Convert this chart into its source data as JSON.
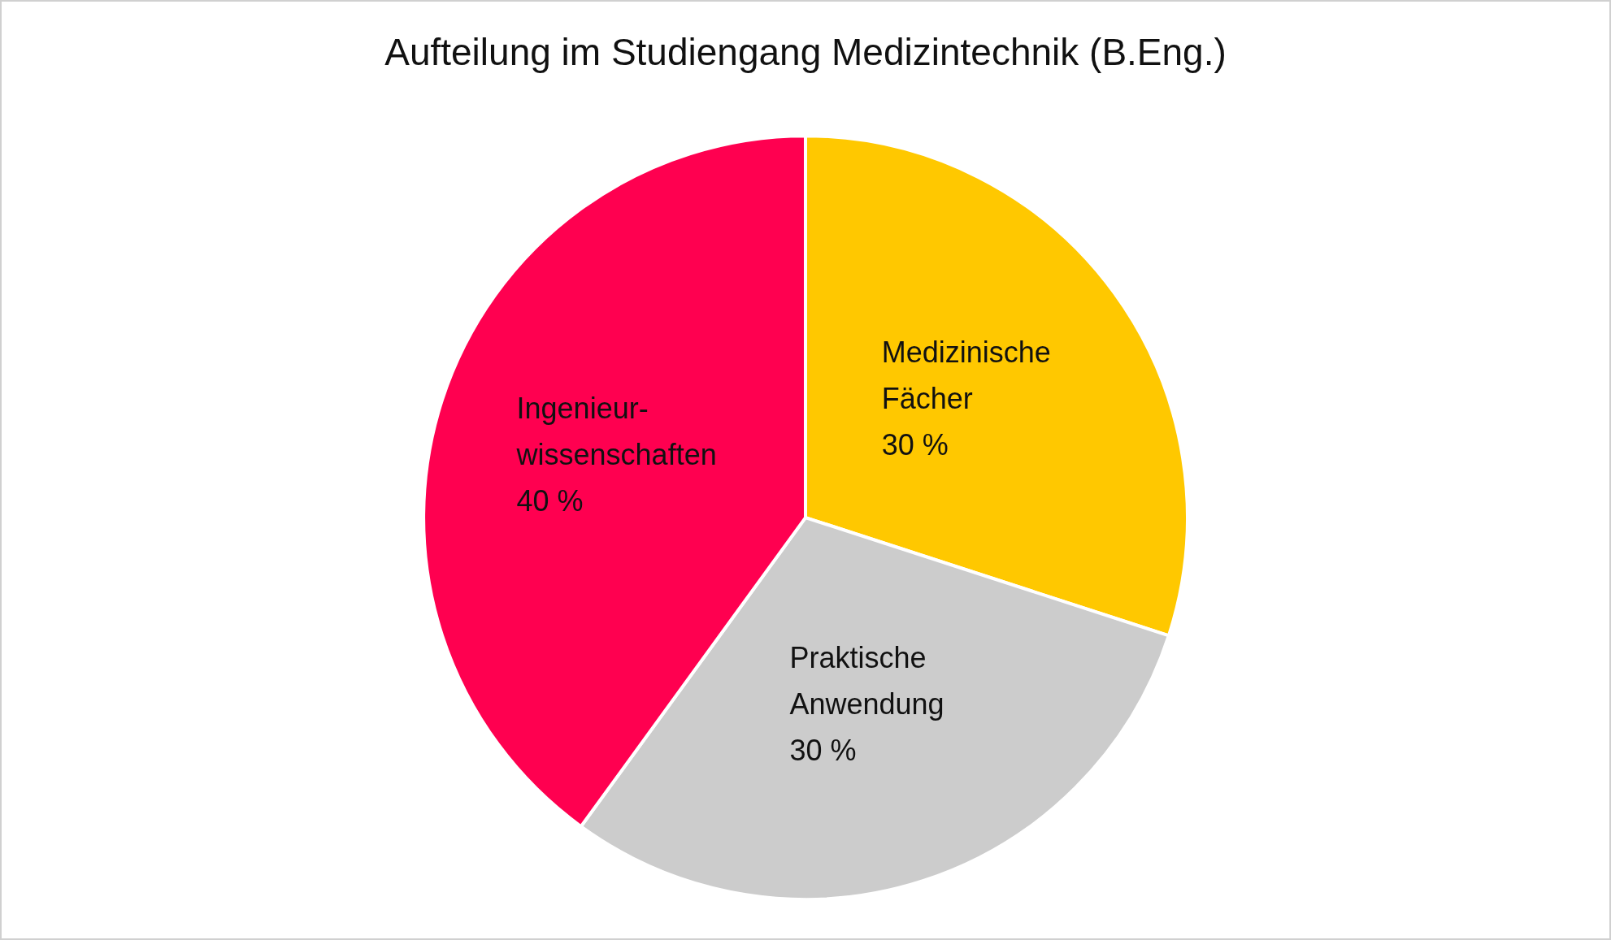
{
  "chart_data": {
    "type": "pie",
    "title": "Aufteilung im Studiengang Medizintechnik (B.Eng.)",
    "categories": [
      "Medizinische\nFächer",
      "Praktische\nAnwendung",
      "Ingenieur-\nwissenschaften"
    ],
    "values": [
      30,
      30,
      40
    ],
    "value_labels": [
      "30 %",
      "30 %",
      "40 %"
    ],
    "colors": [
      "#ffc800",
      "#cccccc",
      "#ff0050"
    ],
    "legend": false
  }
}
